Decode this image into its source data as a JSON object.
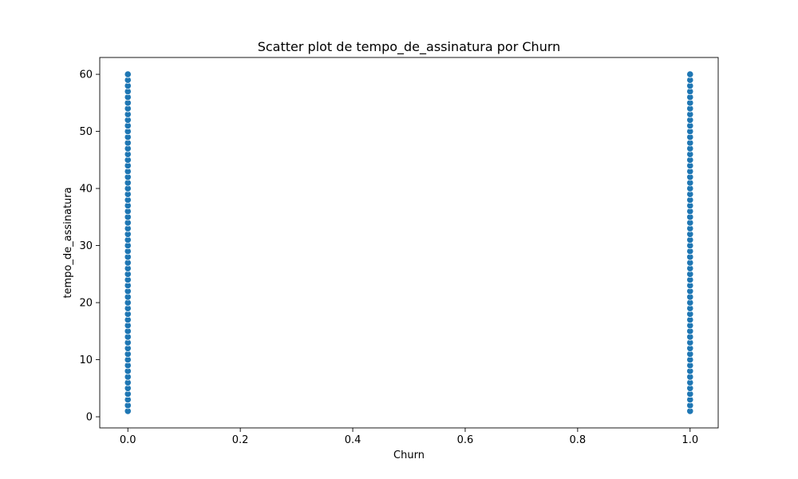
{
  "chart_data": {
    "type": "scatter",
    "title": "Scatter plot de tempo_de_assinatura por Churn",
    "xlabel": "Churn",
    "ylabel": "tempo_de_assinatura",
    "xlim": [
      -0.05,
      1.05
    ],
    "ylim": [
      -1.95,
      62.95
    ],
    "x_ticks": [
      0.0,
      0.2,
      0.4,
      0.6,
      0.8,
      1.0
    ],
    "x_tick_labels": [
      "0.0",
      "0.2",
      "0.4",
      "0.6",
      "0.8",
      "1.0"
    ],
    "y_ticks": [
      0,
      10,
      20,
      30,
      40,
      50,
      60
    ],
    "y_tick_labels": [
      "0",
      "10",
      "20",
      "30",
      "40",
      "50",
      "60"
    ],
    "grid": false,
    "marker_color": "#1f77b4",
    "marker_edge_color": "#ffffff",
    "series": [
      {
        "x_values": [
          0,
          1
        ],
        "y_range": [
          1,
          60
        ],
        "y_step": 1
      }
    ]
  }
}
